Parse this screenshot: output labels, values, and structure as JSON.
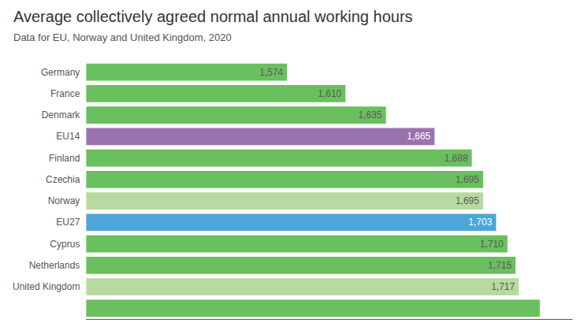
{
  "chart_data": {
    "type": "bar",
    "title": "Average collectively agreed normal annual working hours",
    "subtitle": "Data for EU, Norway and United Kingdom, 2020",
    "orientation": "horizontal",
    "categories": [
      "Germany",
      "France",
      "Denmark",
      "EU14",
      "Finland",
      "Czechia",
      "Norway",
      "EU27",
      "Cyprus",
      "Netherlands",
      "United Kingdom",
      null
    ],
    "values": [
      1574,
      1610,
      1635,
      1665,
      1688,
      1695,
      1695,
      1703,
      1710,
      1715,
      1717,
      1730
    ],
    "colors": [
      "#6abf5e",
      "#6abf5e",
      "#6abf5e",
      "#9b72b0",
      "#6abf5e",
      "#6abf5e",
      "#b8d9a0",
      "#4da6d9",
      "#6abf5e",
      "#6abf5e",
      "#b8d9a0",
      "#6abf5e"
    ],
    "xlim": [
      1450,
      1750
    ],
    "data_labels": true,
    "value_labels": [
      "1,574",
      "1,610",
      "1,635",
      "1,665",
      "1,688",
      "1,695",
      "1,695",
      "1,703",
      "1,710",
      "1,715",
      "1,717",
      null
    ],
    "tick_labels": "y",
    "grid": false
  }
}
